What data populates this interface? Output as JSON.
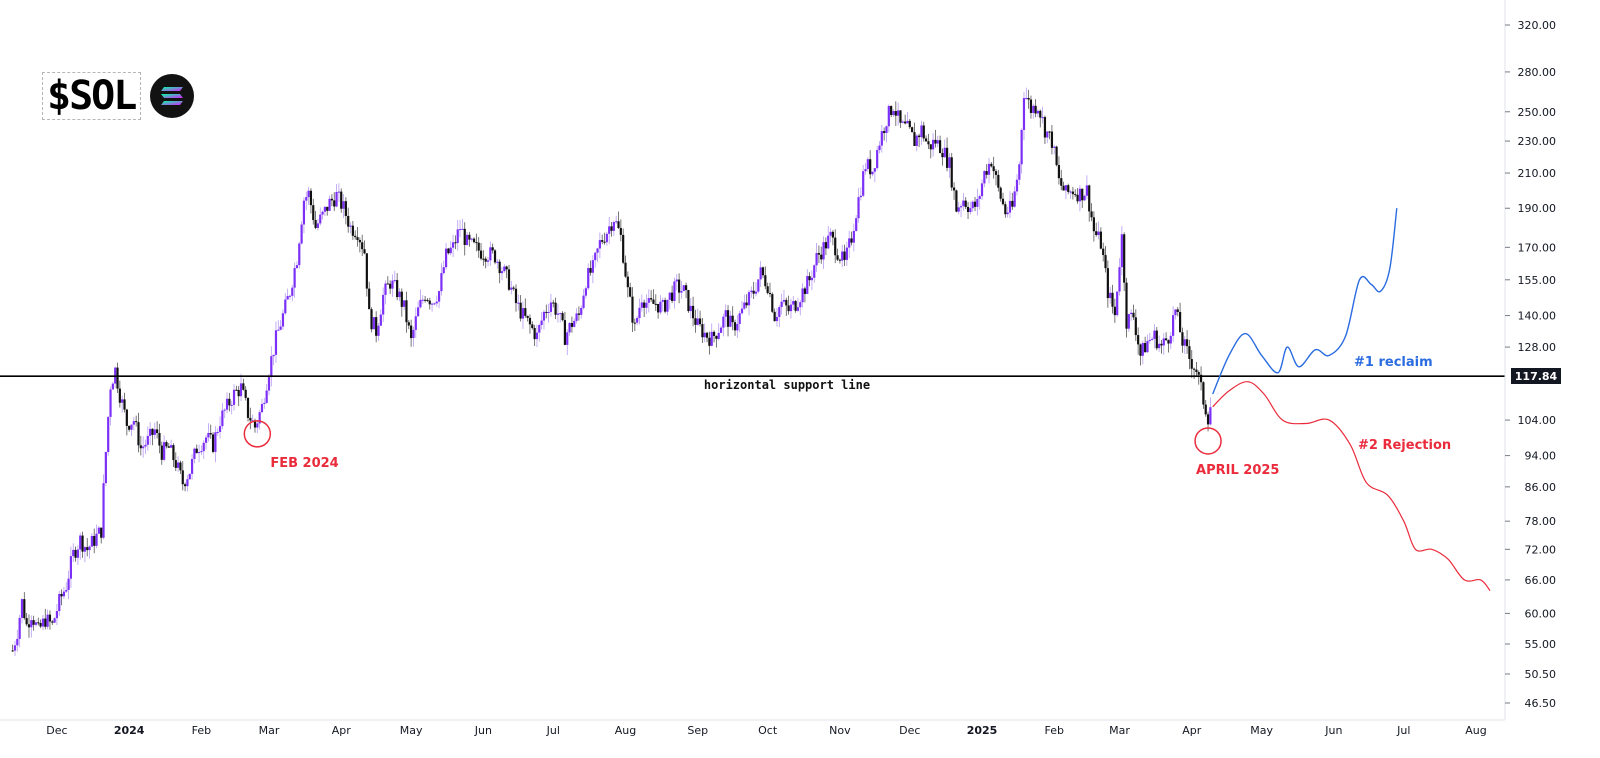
{
  "logo": {
    "ticker": "$SOL",
    "icon": "solana-logo-icon"
  },
  "colors": {
    "up_candle": "#7b2ff7",
    "down_candle": "#111111",
    "support_line": "#000000",
    "reclaim_path": "#2a6ce0",
    "rejection_path": "#ea2b3b",
    "annotation_red": "#ea2b3b"
  },
  "chart_data": {
    "type": "candlestick",
    "title": "",
    "xlabel": "",
    "ylabel": "",
    "scale": "log",
    "ylim": [
      44,
      330
    ],
    "grid": false,
    "y_ticks": [
      320,
      280,
      250,
      230,
      210,
      190,
      170,
      155,
      140,
      128,
      104,
      94,
      86,
      78,
      72,
      66,
      60,
      55,
      50.5,
      46.5
    ],
    "y_tick_labels": [
      "320.00",
      "280.00",
      "250.00",
      "230.00",
      "210.00",
      "190.00",
      "170.00",
      "155.00",
      "140.00",
      "128.00",
      "104.00",
      "94.00",
      "86.00",
      "78.00",
      "72.00",
      "66.00",
      "60.00",
      "55.00",
      "50.50",
      "46.50"
    ],
    "x_ticks": [
      {
        "date": "2023-12-01",
        "label": "Dec"
      },
      {
        "date": "2024-01-01",
        "label": "2024",
        "bold": true
      },
      {
        "date": "2024-02-01",
        "label": "Feb"
      },
      {
        "date": "2024-03-01",
        "label": "Mar"
      },
      {
        "date": "2024-04-01",
        "label": "Apr"
      },
      {
        "date": "2024-05-01",
        "label": "May"
      },
      {
        "date": "2024-06-01",
        "label": "Jun"
      },
      {
        "date": "2024-07-01",
        "label": "Jul"
      },
      {
        "date": "2024-08-01",
        "label": "Aug"
      },
      {
        "date": "2024-09-01",
        "label": "Sep"
      },
      {
        "date": "2024-10-01",
        "label": "Oct"
      },
      {
        "date": "2024-11-01",
        "label": "Nov"
      },
      {
        "date": "2024-12-01",
        "label": "Dec"
      },
      {
        "date": "2025-01-01",
        "label": "2025",
        "bold": true
      },
      {
        "date": "2025-02-01",
        "label": "Feb"
      },
      {
        "date": "2025-03-01",
        "label": "Mar"
      },
      {
        "date": "2025-04-01",
        "label": "Apr"
      },
      {
        "date": "2025-05-01",
        "label": "May"
      },
      {
        "date": "2025-06-01",
        "label": "Jun"
      },
      {
        "date": "2025-07-01",
        "label": "Jul"
      },
      {
        "date": "2025-08-01",
        "label": "Aug"
      }
    ],
    "price_series": [
      [
        "2023-11-12",
        54
      ],
      [
        "2023-11-14",
        57
      ],
      [
        "2023-11-16",
        62
      ],
      [
        "2023-11-18",
        58
      ],
      [
        "2023-11-20",
        60
      ],
      [
        "2023-11-23",
        57
      ],
      [
        "2023-11-26",
        59
      ],
      [
        "2023-11-29",
        58
      ],
      [
        "2023-12-02",
        62
      ],
      [
        "2023-12-05",
        65
      ],
      [
        "2023-12-08",
        71
      ],
      [
        "2023-12-11",
        74
      ],
      [
        "2023-12-14",
        72
      ],
      [
        "2023-12-17",
        74
      ],
      [
        "2023-12-20",
        76
      ],
      [
        "2023-12-22",
        95
      ],
      [
        "2023-12-24",
        115
      ],
      [
        "2023-12-26",
        120
      ],
      [
        "2023-12-28",
        112
      ],
      [
        "2023-12-31",
        103
      ],
      [
        "2024-01-03",
        104
      ],
      [
        "2024-01-06",
        96
      ],
      [
        "2024-01-09",
        98
      ],
      [
        "2024-01-12",
        101
      ],
      [
        "2024-01-15",
        95
      ],
      [
        "2024-01-18",
        96
      ],
      [
        "2024-01-21",
        92
      ],
      [
        "2024-01-24",
        87
      ],
      [
        "2024-01-27",
        90
      ],
      [
        "2024-01-30",
        96
      ],
      [
        "2024-02-03",
        99
      ],
      [
        "2024-02-06",
        97
      ],
      [
        "2024-02-09",
        104
      ],
      [
        "2024-02-12",
        108
      ],
      [
        "2024-02-15",
        112
      ],
      [
        "2024-02-18",
        114
      ],
      [
        "2024-02-21",
        106
      ],
      [
        "2024-02-24",
        102
      ],
      [
        "2024-02-27",
        108
      ],
      [
        "2024-03-01",
        120
      ],
      [
        "2024-03-04",
        131
      ],
      [
        "2024-03-07",
        140
      ],
      [
        "2024-03-10",
        150
      ],
      [
        "2024-03-13",
        165
      ],
      [
        "2024-03-16",
        195
      ],
      [
        "2024-03-18",
        198
      ],
      [
        "2024-03-21",
        180
      ],
      [
        "2024-03-24",
        186
      ],
      [
        "2024-03-27",
        193
      ],
      [
        "2024-03-30",
        197
      ],
      [
        "2024-04-02",
        190
      ],
      [
        "2024-04-05",
        180
      ],
      [
        "2024-04-08",
        178
      ],
      [
        "2024-04-11",
        168
      ],
      [
        "2024-04-13",
        140
      ],
      [
        "2024-04-16",
        134
      ],
      [
        "2024-04-19",
        148
      ],
      [
        "2024-04-22",
        154
      ],
      [
        "2024-04-25",
        150
      ],
      [
        "2024-04-28",
        143
      ],
      [
        "2024-05-01",
        130
      ],
      [
        "2024-05-04",
        142
      ],
      [
        "2024-05-07",
        149
      ],
      [
        "2024-05-10",
        146
      ],
      [
        "2024-05-13",
        150
      ],
      [
        "2024-05-16",
        166
      ],
      [
        "2024-05-19",
        170
      ],
      [
        "2024-05-22",
        180
      ],
      [
        "2024-05-25",
        172
      ],
      [
        "2024-05-28",
        170
      ],
      [
        "2024-05-31",
        168
      ],
      [
        "2024-06-03",
        167
      ],
      [
        "2024-06-06",
        166
      ],
      [
        "2024-06-09",
        160
      ],
      [
        "2024-06-12",
        154
      ],
      [
        "2024-06-15",
        145
      ],
      [
        "2024-06-18",
        140
      ],
      [
        "2024-06-21",
        136
      ],
      [
        "2024-06-24",
        132
      ],
      [
        "2024-06-27",
        141
      ],
      [
        "2024-06-30",
        146
      ],
      [
        "2024-07-03",
        141
      ],
      [
        "2024-07-06",
        132
      ],
      [
        "2024-07-09",
        137
      ],
      [
        "2024-07-12",
        140
      ],
      [
        "2024-07-15",
        155
      ],
      [
        "2024-07-18",
        160
      ],
      [
        "2024-07-21",
        172
      ],
      [
        "2024-07-24",
        178
      ],
      [
        "2024-07-27",
        185
      ],
      [
        "2024-07-30",
        175
      ],
      [
        "2024-08-02",
        150
      ],
      [
        "2024-08-05",
        135
      ],
      [
        "2024-08-08",
        148
      ],
      [
        "2024-08-11",
        144
      ],
      [
        "2024-08-14",
        145
      ],
      [
        "2024-08-17",
        143
      ],
      [
        "2024-08-20",
        148
      ],
      [
        "2024-08-23",
        152
      ],
      [
        "2024-08-26",
        150
      ],
      [
        "2024-08-29",
        142
      ],
      [
        "2024-09-01",
        136
      ],
      [
        "2024-09-04",
        133
      ],
      [
        "2024-09-07",
        131
      ],
      [
        "2024-09-10",
        135
      ],
      [
        "2024-09-13",
        140
      ],
      [
        "2024-09-16",
        135
      ],
      [
        "2024-09-19",
        140
      ],
      [
        "2024-09-22",
        145
      ],
      [
        "2024-09-25",
        150
      ],
      [
        "2024-09-28",
        158
      ],
      [
        "2024-10-01",
        153
      ],
      [
        "2024-10-04",
        140
      ],
      [
        "2024-10-07",
        145
      ],
      [
        "2024-10-10",
        142
      ],
      [
        "2024-10-13",
        145
      ],
      [
        "2024-10-16",
        150
      ],
      [
        "2024-10-19",
        155
      ],
      [
        "2024-10-22",
        165
      ],
      [
        "2024-10-25",
        170
      ],
      [
        "2024-10-28",
        175
      ],
      [
        "2024-10-31",
        168
      ],
      [
        "2024-11-03",
        162
      ],
      [
        "2024-11-06",
        175
      ],
      [
        "2024-11-09",
        195
      ],
      [
        "2024-11-12",
        215
      ],
      [
        "2024-11-15",
        212
      ],
      [
        "2024-11-18",
        230
      ],
      [
        "2024-11-21",
        245
      ],
      [
        "2024-11-24",
        255
      ],
      [
        "2024-11-27",
        240
      ],
      [
        "2024-11-30",
        238
      ],
      [
        "2024-12-03",
        230
      ],
      [
        "2024-12-06",
        238
      ],
      [
        "2024-12-09",
        226
      ],
      [
        "2024-12-12",
        230
      ],
      [
        "2024-12-15",
        225
      ],
      [
        "2024-12-18",
        215
      ],
      [
        "2024-12-21",
        190
      ],
      [
        "2024-12-24",
        195
      ],
      [
        "2024-12-27",
        190
      ],
      [
        "2024-12-30",
        192
      ],
      [
        "2025-01-02",
        210
      ],
      [
        "2025-01-05",
        218
      ],
      [
        "2025-01-08",
        200
      ],
      [
        "2025-01-11",
        188
      ],
      [
        "2025-01-14",
        190
      ],
      [
        "2025-01-17",
        215
      ],
      [
        "2025-01-19",
        265
      ],
      [
        "2025-01-22",
        252
      ],
      [
        "2025-01-25",
        255
      ],
      [
        "2025-01-28",
        238
      ],
      [
        "2025-01-31",
        230
      ],
      [
        "2025-02-03",
        205
      ],
      [
        "2025-02-06",
        198
      ],
      [
        "2025-02-09",
        200
      ],
      [
        "2025-02-12",
        198
      ],
      [
        "2025-02-15",
        200
      ],
      [
        "2025-02-18",
        178
      ],
      [
        "2025-02-21",
        172
      ],
      [
        "2025-02-24",
        150
      ],
      [
        "2025-02-27",
        140
      ],
      [
        "2025-03-02",
        175
      ],
      [
        "2025-03-04",
        138
      ],
      [
        "2025-03-07",
        140
      ],
      [
        "2025-03-10",
        125
      ],
      [
        "2025-03-13",
        130
      ],
      [
        "2025-03-16",
        132
      ],
      [
        "2025-03-19",
        128
      ],
      [
        "2025-03-22",
        132
      ],
      [
        "2025-03-25",
        142
      ],
      [
        "2025-03-28",
        130
      ],
      [
        "2025-03-31",
        124
      ],
      [
        "2025-04-03",
        120
      ],
      [
        "2025-04-06",
        110
      ],
      [
        "2025-04-08",
        105
      ],
      [
        "2025-04-10",
        112
      ]
    ],
    "support_line": {
      "value": 117.84,
      "label": "117.84",
      "annotation": "horizontal support line"
    },
    "circled_lows": [
      {
        "date": "2024-02-25",
        "value": 100,
        "label": "FEB 2024"
      },
      {
        "date": "2025-04-08",
        "value": 98,
        "label": "APRIL 2025"
      }
    ],
    "scenarios": [
      {
        "name": "#1 reclaim",
        "points": [
          [
            "2025-04-10",
            112
          ],
          [
            "2025-04-17",
            125
          ],
          [
            "2025-04-24",
            133
          ],
          [
            "2025-05-01",
            125
          ],
          [
            "2025-05-08",
            119
          ],
          [
            "2025-05-12",
            128
          ],
          [
            "2025-05-17",
            121
          ],
          [
            "2025-05-24",
            127
          ],
          [
            "2025-05-30",
            125
          ],
          [
            "2025-06-06",
            132
          ],
          [
            "2025-06-12",
            155
          ],
          [
            "2025-06-17",
            153
          ],
          [
            "2025-06-21",
            150
          ],
          [
            "2025-06-25",
            160
          ],
          [
            "2025-06-28",
            190
          ]
        ]
      },
      {
        "name": "#2 Rejection",
        "points": [
          [
            "2025-04-10",
            108
          ],
          [
            "2025-04-17",
            113
          ],
          [
            "2025-04-25",
            116
          ],
          [
            "2025-05-02",
            112
          ],
          [
            "2025-05-10",
            104
          ],
          [
            "2025-05-20",
            103
          ],
          [
            "2025-05-30",
            104
          ],
          [
            "2025-06-08",
            97
          ],
          [
            "2025-06-15",
            87
          ],
          [
            "2025-06-24",
            84
          ],
          [
            "2025-07-01",
            78
          ],
          [
            "2025-07-06",
            72
          ],
          [
            "2025-07-13",
            72
          ],
          [
            "2025-07-20",
            70
          ],
          [
            "2025-07-27",
            66
          ],
          [
            "2025-08-03",
            66
          ],
          [
            "2025-08-07",
            64
          ]
        ]
      }
    ]
  }
}
